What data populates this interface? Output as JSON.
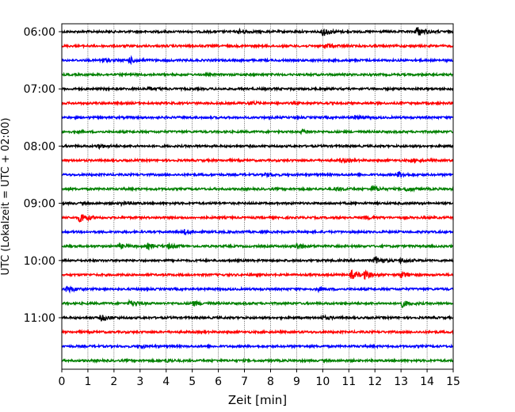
{
  "chart_data": {
    "type": "line",
    "xlabel": "Zeit  [min]",
    "ylabel": "UTC (Lokalzeit = UTC + 02:00)",
    "xlim": [
      0,
      15
    ],
    "x_ticks": [
      "0",
      "1",
      "2",
      "3",
      "4",
      "5",
      "6",
      "7",
      "8",
      "9",
      "10",
      "11",
      "12",
      "13",
      "14",
      "15"
    ],
    "x_grid": "dotted vertical lines at each minute",
    "y_ticks": [
      "06:00",
      "07:00",
      "08:00",
      "09:00",
      "10:00",
      "11:00"
    ],
    "colors": [
      "#000000",
      "#ff0000",
      "#0000ff",
      "#008000"
    ],
    "traces": [
      {
        "label": "06:00",
        "color": "#000000",
        "events": [
          {
            "t": 6.8,
            "a": 2.5
          },
          {
            "t": 10.0,
            "a": 5.5
          },
          {
            "t": 13.6,
            "a": 6.0
          }
        ]
      },
      {
        "color": "#ff0000",
        "events": [
          {
            "t": 10.1,
            "a": 3.0
          }
        ]
      },
      {
        "color": "#0000ff",
        "events": [
          {
            "t": 1.5,
            "a": 2.5
          },
          {
            "t": 2.6,
            "a": 3.5
          }
        ]
      },
      {
        "color": "#008000",
        "events": []
      },
      {
        "label": "07:00",
        "color": "#000000",
        "events": [
          {
            "t": 3.3,
            "a": 2.0
          }
        ]
      },
      {
        "color": "#ff0000",
        "events": [
          {
            "t": 7.2,
            "a": 2.0
          }
        ]
      },
      {
        "color": "#0000ff",
        "events": [
          {
            "t": 11.2,
            "a": 2.0
          }
        ]
      },
      {
        "color": "#008000",
        "events": [
          {
            "t": 9.2,
            "a": 2.0
          }
        ]
      },
      {
        "label": "08:00",
        "color": "#000000",
        "events": [
          {
            "t": 1.4,
            "a": 2.0
          }
        ]
      },
      {
        "color": "#ff0000",
        "events": [
          {
            "t": 10.7,
            "a": 2.2
          },
          {
            "t": 13.4,
            "a": 2.0
          }
        ]
      },
      {
        "color": "#0000ff",
        "events": [
          {
            "t": 7.8,
            "a": 2.0
          },
          {
            "t": 12.9,
            "a": 3.5
          }
        ]
      },
      {
        "color": "#008000",
        "events": [
          {
            "t": 10.5,
            "a": 2.2
          },
          {
            "t": 11.9,
            "a": 3.5
          },
          {
            "t": 13.2,
            "a": 2.5
          }
        ]
      },
      {
        "label": "09:00",
        "color": "#000000",
        "events": [
          {
            "t": 2.3,
            "a": 2.0
          }
        ]
      },
      {
        "color": "#ff0000",
        "events": [
          {
            "t": 0.7,
            "a": 6.5
          },
          {
            "t": 11.6,
            "a": 2.0
          }
        ]
      },
      {
        "color": "#0000ff",
        "events": [
          {
            "t": 4.7,
            "a": 2.5
          }
        ]
      },
      {
        "color": "#008000",
        "events": [
          {
            "t": 2.2,
            "a": 2.5
          },
          {
            "t": 3.3,
            "a": 3.0
          },
          {
            "t": 4.1,
            "a": 2.5
          },
          {
            "t": 9.0,
            "a": 4.0
          }
        ]
      },
      {
        "label": "10:00",
        "color": "#000000",
        "events": [
          {
            "t": 12.0,
            "a": 5.0
          },
          {
            "t": 13.0,
            "a": 2.5
          }
        ]
      },
      {
        "color": "#ff0000",
        "events": [
          {
            "t": 11.1,
            "a": 5.0
          },
          {
            "t": 11.6,
            "a": 4.0
          },
          {
            "t": 13.0,
            "a": 3.5
          }
        ]
      },
      {
        "color": "#0000ff",
        "events": [
          {
            "t": 0.2,
            "a": 4.0
          },
          {
            "t": 9.8,
            "a": 2.0
          }
        ]
      },
      {
        "color": "#008000",
        "events": [
          {
            "t": 2.6,
            "a": 3.5
          },
          {
            "t": 5.0,
            "a": 3.0
          },
          {
            "t": 13.0,
            "a": 4.5
          }
        ]
      },
      {
        "label": "11:00",
        "color": "#000000",
        "events": [
          {
            "t": 1.5,
            "a": 3.5
          },
          {
            "t": 10.0,
            "a": 2.0
          }
        ]
      },
      {
        "color": "#ff0000",
        "events": []
      },
      {
        "color": "#0000ff",
        "events": [
          {
            "t": 3.0,
            "a": 1.5
          }
        ]
      },
      {
        "color": "#008000",
        "events": [
          {
            "t": 4.0,
            "a": 1.5
          }
        ]
      }
    ]
  }
}
